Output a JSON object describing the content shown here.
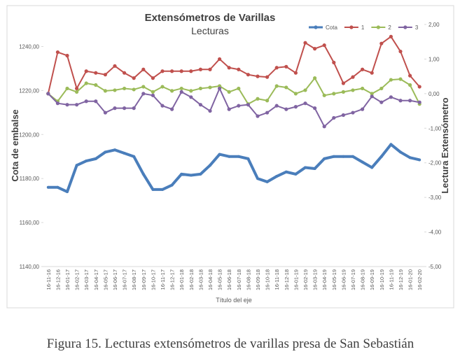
{
  "chart_data": {
    "type": "line",
    "title": "Extensómetros de Varillas",
    "subtitle": "Lecturas",
    "x_label": "Título del eje",
    "y_label": "Cota de embalse",
    "y2_label": "Lectura Extensómetro",
    "categories": [
      "16-11-16",
      "16-12-16",
      "16-01-17",
      "16-02-17",
      "16-03-17",
      "16-04-17",
      "16-05-17",
      "16-06-17",
      "16-07-17",
      "16-08-17",
      "16-09-17",
      "16-10-17",
      "16-11-17",
      "16-12-17",
      "16-01-18",
      "16-02-18",
      "16-03-18",
      "16-04-18",
      "16-05-18",
      "16-06-18",
      "16-07-18",
      "16-08-18",
      "16-09-18",
      "16-10-18",
      "16-11-18",
      "16-12-18",
      "16-01-19",
      "16-02-19",
      "16-03-19",
      "16-04-19",
      "16-05-19",
      "16-06-19",
      "16-07-19",
      "16-08-19",
      "16-09-19",
      "16-10-19",
      "16-11-19",
      "16-12-19",
      "16-01-20",
      "16-02-20"
    ],
    "series": [
      {
        "name": "Cota",
        "color": "#4a7ebb",
        "axis": "y",
        "values": [
          1176,
          1176,
          1174,
          1186,
          1188,
          1189,
          1192,
          1193,
          1191.5,
          1190,
          1182,
          1175,
          1175,
          1177,
          1182,
          1181.5,
          1182,
          1186,
          1191,
          1190,
          1190,
          1189,
          1180,
          1178.5,
          1181,
          1183,
          1182,
          1185,
          1184.5,
          1189,
          1190,
          1190,
          1190,
          1187.5,
          1185,
          1190,
          1195.5,
          1192,
          1189.5,
          1188.5
        ]
      },
      {
        "name": "1",
        "color": "#c0504d",
        "axis": "y2",
        "values": [
          0,
          1.2,
          1.1,
          0.15,
          0.65,
          0.6,
          0.55,
          0.8,
          0.6,
          0.45,
          0.7,
          0.45,
          0.65,
          0.65,
          0.65,
          0.65,
          0.7,
          0.7,
          1.0,
          0.75,
          0.7,
          0.55,
          0.5,
          0.48,
          0.75,
          0.78,
          0.6,
          1.47,
          1.3,
          1.4,
          0.9,
          0.3,
          0.48,
          0.7,
          0.6,
          1.45,
          1.65,
          1.22,
          0.52,
          0.2
        ]
      },
      {
        "name": "2",
        "color": "#9bbb59",
        "axis": "y2",
        "values": [
          0,
          -0.22,
          0.15,
          0.05,
          0.3,
          0.25,
          0.08,
          0.1,
          0.15,
          0.12,
          0.2,
          0.05,
          0.2,
          0.08,
          0.15,
          0.08,
          0.15,
          0.18,
          0.22,
          0.05,
          0.15,
          -0.3,
          -0.15,
          -0.2,
          0.22,
          0.18,
          0,
          0.1,
          0.45,
          -0.05,
          0,
          0.05,
          0.1,
          0.15,
          0,
          0.15,
          0.4,
          0.42,
          0.25,
          -0.3
        ]
      },
      {
        "name": "3",
        "color": "#8064a2",
        "axis": "y2",
        "values": [
          0,
          -0.28,
          -0.32,
          -0.32,
          -0.22,
          -0.22,
          -0.55,
          -0.42,
          -0.42,
          -0.42,
          0,
          -0.05,
          -0.35,
          -0.45,
          0.05,
          -0.1,
          -0.32,
          -0.5,
          0.15,
          -0.45,
          -0.35,
          -0.32,
          -0.65,
          -0.55,
          -0.35,
          -0.45,
          -0.38,
          -0.28,
          -0.42,
          -0.95,
          -0.7,
          -0.62,
          -0.55,
          -0.45,
          -0.08,
          -0.25,
          -0.1,
          -0.2,
          -0.2,
          -0.25
        ]
      }
    ],
    "ylim": [
      1140,
      1250
    ],
    "yticks": [
      {
        "value": 1140,
        "label": "1140,00"
      },
      {
        "value": 1160,
        "label": "1160,00"
      },
      {
        "value": 1180,
        "label": "1180,00"
      },
      {
        "value": 1200,
        "label": "1200,00"
      },
      {
        "value": 1220,
        "label": "1220,00"
      },
      {
        "value": 1240,
        "label": "1240,00"
      }
    ],
    "y2lim": [
      -5,
      2
    ],
    "y2ticks": [
      {
        "value": -5,
        "label": "-5,00"
      },
      {
        "value": -4,
        "label": "-4,00"
      },
      {
        "value": -3,
        "label": "-3,00"
      },
      {
        "value": -2,
        "label": "-2,00"
      },
      {
        "value": -1,
        "label": "-1,00"
      },
      {
        "value": 0,
        "label": "0,00"
      },
      {
        "value": 1,
        "label": "1,00"
      },
      {
        "value": 2,
        "label": "2,00"
      }
    ],
    "grid": false,
    "legend": "top-right"
  },
  "caption": "Figura 15. Lecturas extensómetros de varillas presa de San Sebastián"
}
